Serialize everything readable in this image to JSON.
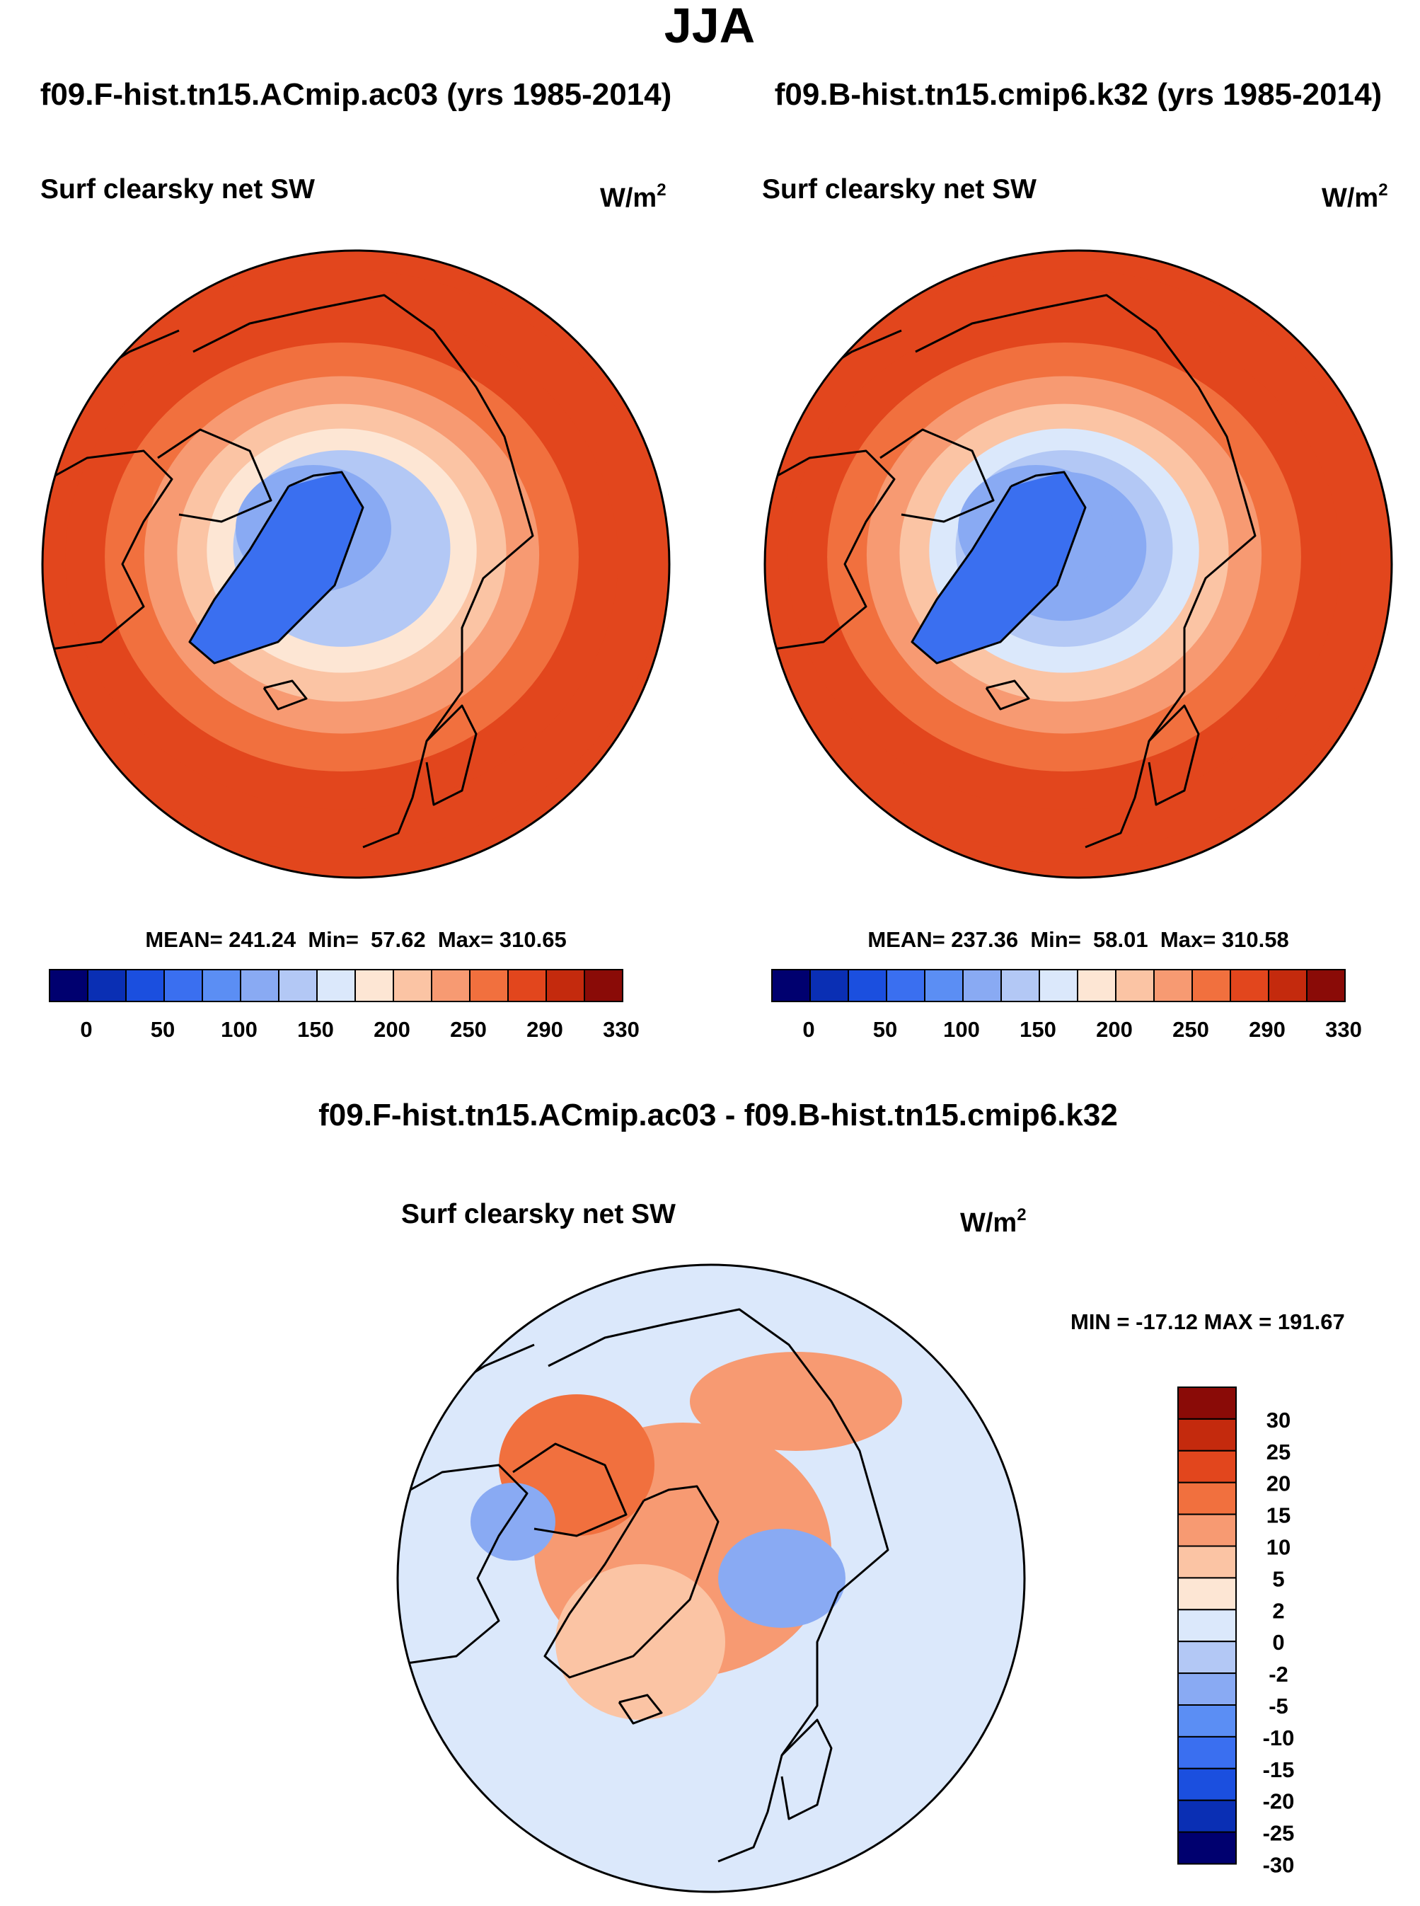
{
  "chart_data": {
    "type": "polar_contour_panels",
    "main_title": "JJA",
    "panels": [
      {
        "id": "control",
        "case_title": "f09.F-hist.tn15.ACmip.ac03 (yrs 1985-2014)",
        "variable": "Surf clearsky net SW",
        "units": {
          "base": "W/m",
          "exp": "2"
        },
        "stats_label": "MEAN= 241.24  Min=  57.62  Max= 310.65",
        "stats": {
          "mean": 241.24,
          "min": 57.62,
          "max": 310.65
        },
        "colorbar": {
          "colors": [
            "#00006f",
            "#0a2fb4",
            "#1b4fdf",
            "#3a6ff0",
            "#5b8ef4",
            "#89aaf3",
            "#b3c8f5",
            "#dbe8fb",
            "#fde6d4",
            "#fbc4a4",
            "#f79a72",
            "#f1703e",
            "#e2461d",
            "#c42a0d",
            "#8a0b07"
          ],
          "tick_labels": [
            "0",
            "50",
            "100",
            "150",
            "200",
            "250",
            "290",
            "330"
          ]
        },
        "field": {
          "pole_value": 115,
          "greenland_value": 60,
          "ring_values": [
            128,
            148,
            178,
            210,
            240,
            262,
            275,
            282
          ],
          "outer_value": 283
        }
      },
      {
        "id": "test",
        "case_title": "f09.B-hist.tn15.cmip6.k32 (yrs 1985-2014)",
        "variable": "Surf clearsky net SW",
        "units": {
          "base": "W/m",
          "exp": "2"
        },
        "stats_label": "MEAN= 237.36  Min=  58.01  Max= 310.58",
        "stats": {
          "mean": 237.36,
          "min": 58.01,
          "max": 310.58
        },
        "colorbar": {
          "colors": [
            "#00006f",
            "#0a2fb4",
            "#1b4fdf",
            "#3a6ff0",
            "#5b8ef4",
            "#89aaf3",
            "#b3c8f5",
            "#dbe8fb",
            "#fde6d4",
            "#fbc4a4",
            "#f79a72",
            "#f1703e",
            "#e2461d",
            "#c42a0d",
            "#8a0b07"
          ],
          "tick_labels": [
            "0",
            "50",
            "100",
            "150",
            "200",
            "250",
            "290",
            "330"
          ]
        },
        "field": {
          "pole_value": 112,
          "greenland_value": 60,
          "ring_values": [
            120,
            138,
            165,
            200,
            235,
            260,
            274,
            282
          ],
          "outer_value": 283
        }
      }
    ],
    "difference": {
      "title": "f09.F-hist.tn15.ACmip.ac03 - f09.B-hist.tn15.cmip6.k32",
      "variable": "Surf clearsky net SW",
      "units": {
        "base": "W/m",
        "exp": "2"
      },
      "minmax_label": "MIN = -17.12 MAX = 191.67",
      "stats": {
        "min": -17.12,
        "max": 191.67
      },
      "colorbar": {
        "colors": [
          "#8a0b07",
          "#c42a0d",
          "#e2461d",
          "#f1703e",
          "#f79a72",
          "#fbc4a4",
          "#fde6d4",
          "#dbe8fb",
          "#b3c8f5",
          "#89aaf3",
          "#5b8ef4",
          "#3a6ff0",
          "#1b4fdf",
          "#0a2fb4",
          "#00006f"
        ],
        "tick_labels": [
          "30",
          "25",
          "20",
          "15",
          "10",
          "5",
          "2",
          "0",
          "-2",
          "-5",
          "-10",
          "-15",
          "-20",
          "-25",
          "-30"
        ]
      },
      "field": {
        "base_value": -1,
        "features": [
          {
            "region": "central-arctic",
            "value": 8
          },
          {
            "region": "canadian-archipelago",
            "value": 12
          },
          {
            "region": "siberian-coast",
            "value": 6
          },
          {
            "region": "laptev-kara-seas",
            "value": -8
          },
          {
            "region": "baffin-bay",
            "value": -6
          },
          {
            "region": "greenland",
            "value": 2
          }
        ]
      }
    }
  }
}
